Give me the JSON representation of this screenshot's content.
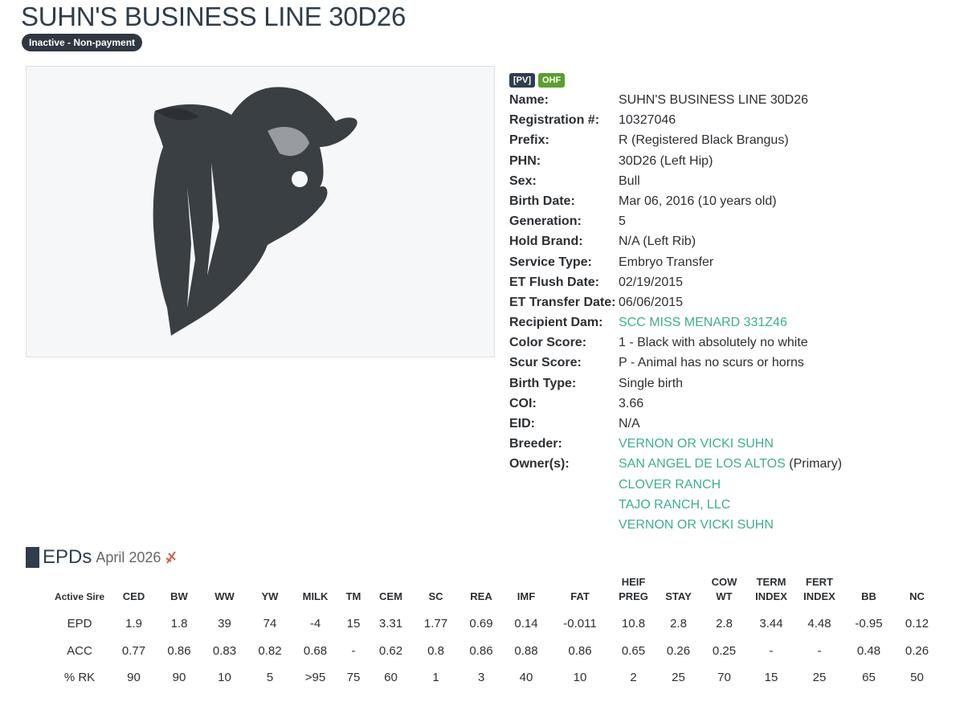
{
  "header": {
    "title": "SUHN'S BUSINESS LINE 30D26",
    "status": "Inactive - Non-payment"
  },
  "tags": [
    "[PV]",
    "OHF"
  ],
  "details": [
    {
      "label": "Name:",
      "value": "SUHN'S BUSINESS LINE 30D26"
    },
    {
      "label": "Registration #:",
      "value": "10327046"
    },
    {
      "label": "Prefix:",
      "value": "R (Registered Black Brangus)"
    },
    {
      "label": "PHN:",
      "value": "30D26 (Left Hip)"
    },
    {
      "label": "Sex:",
      "value": "Bull"
    },
    {
      "label": "Birth Date:",
      "value": "Mar 06, 2016 (10 years old)"
    },
    {
      "label": "Generation:",
      "value": "5"
    },
    {
      "label": "Hold Brand:",
      "value": "N/A (Left Rib)"
    },
    {
      "label": "Service Type:",
      "value": "Embryo Transfer"
    },
    {
      "label": "ET Flush Date:",
      "value": "02/19/2015"
    },
    {
      "label": "ET Transfer Date:",
      "value": "06/06/2015"
    },
    {
      "label": "Recipient Dam:",
      "value": "SCC MISS MENARD 331Z46",
      "link": true
    },
    {
      "label": "Color Score:",
      "value": "1 - Black with absolutely no white"
    },
    {
      "label": "Scur Score:",
      "value": "P - Animal has no scurs or horns"
    },
    {
      "label": "Birth Type:",
      "value": "Single birth"
    },
    {
      "label": "COI:",
      "value": "3.66"
    },
    {
      "label": "EID:",
      "value": "N/A"
    },
    {
      "label": "Breeder:",
      "value": "VERNON OR VICKI SUHN",
      "link": true
    }
  ],
  "owners": {
    "label": "Owner(s):",
    "list": [
      {
        "name": "SAN ANGEL DE LOS ALTOS",
        "note": "(Primary)"
      },
      {
        "name": "CLOVER RANCH"
      },
      {
        "name": "TAJO RANCH, LLC"
      },
      {
        "name": "VERNON OR VICKI SUHN"
      }
    ]
  },
  "epds": {
    "title": "EPDs",
    "date": "April 2026",
    "columns": [
      "Active Sire",
      "CED",
      "BW",
      "WW",
      "YW",
      "MILK",
      "TM",
      "CEM",
      "SC",
      "REA",
      "IMF",
      "FAT",
      "HEIF PREG",
      "STAY",
      "COW WT",
      "TERM INDEX",
      "FERT INDEX",
      "BB",
      "NC"
    ],
    "rows": [
      [
        "EPD",
        "1.9",
        "1.8",
        "39",
        "74",
        "-4",
        "15",
        "3.31",
        "1.77",
        "0.69",
        "0.14",
        "-0.011",
        "10.8",
        "2.8",
        "2.8",
        "3.44",
        "4.48",
        "-0.95",
        "0.12"
      ],
      [
        "ACC",
        "0.77",
        "0.86",
        "0.83",
        "0.82",
        "0.68",
        "-",
        "0.62",
        "0.8",
        "0.86",
        "0.88",
        "0.86",
        "0.65",
        "0.26",
        "0.25",
        "-",
        "-",
        "0.48",
        "0.26"
      ],
      [
        "% RK",
        "90",
        "90",
        "10",
        "5",
        ">95",
        "75",
        "60",
        "1",
        "3",
        "40",
        "10",
        "2",
        "25",
        "70",
        "15",
        "25",
        "65",
        "50"
      ]
    ]
  }
}
